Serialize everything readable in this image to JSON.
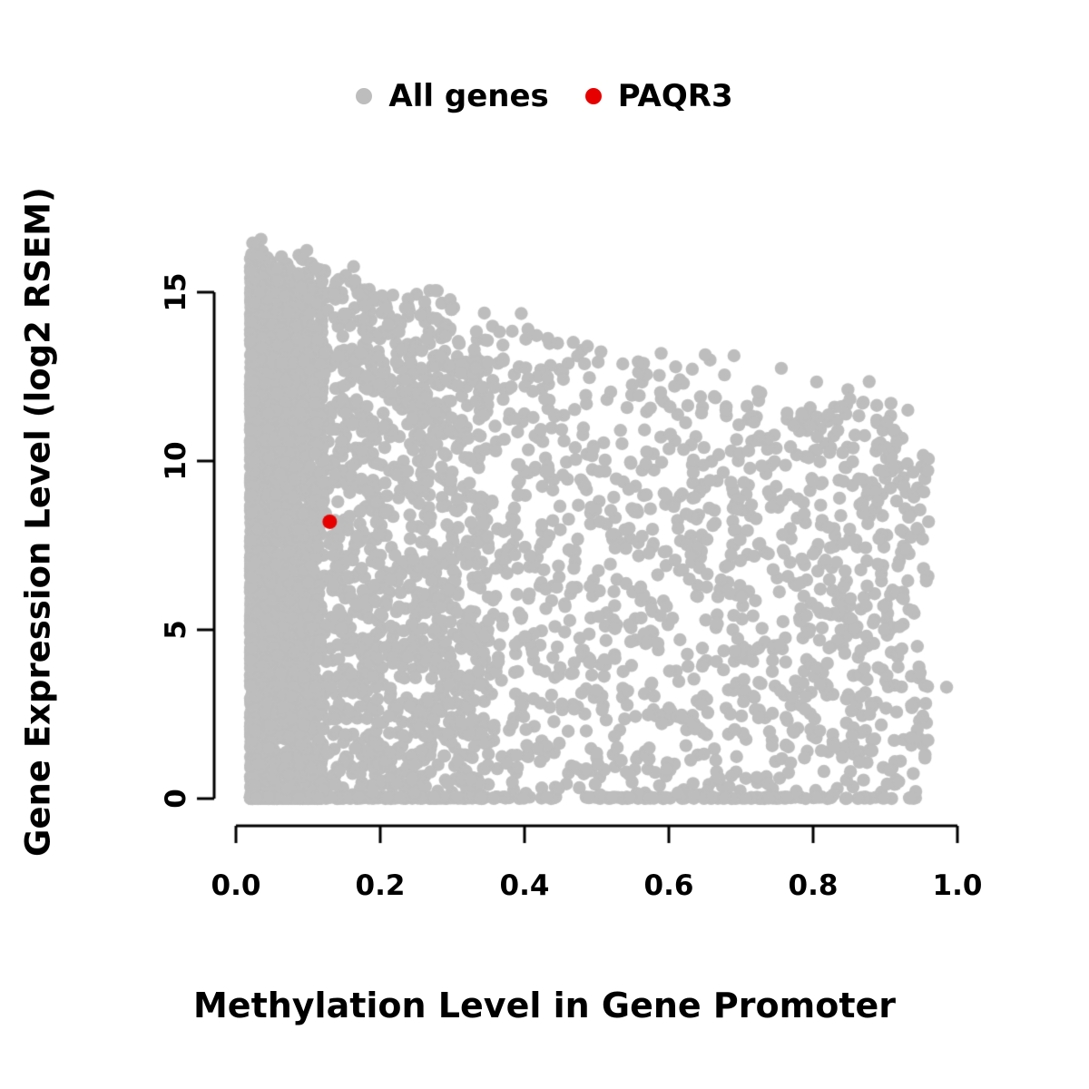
{
  "chart_data": {
    "type": "scatter",
    "title": "",
    "xlabel": "Methylation Level in Gene Promoter",
    "ylabel": "Gene Expression Level (log2 RSEM)",
    "xlim": [
      0,
      1
    ],
    "ylim": [
      0,
      15
    ],
    "x_ticks": [
      0,
      0.2,
      0.4,
      0.6,
      0.8,
      1.0
    ],
    "x_tick_labels": [
      "0.0",
      "0.2",
      "0.4",
      "0.6",
      "0.8",
      "1.0"
    ],
    "y_ticks": [
      0,
      5,
      10,
      15
    ],
    "y_tick_labels": [
      "0",
      "5",
      "10",
      "15"
    ],
    "grid": false,
    "legend_position": "top-center",
    "legend": [
      {
        "label": "All genes",
        "color": "#bdbdbd"
      },
      {
        "label": "PAQR3",
        "color": "#e60000"
      }
    ],
    "series": [
      {
        "name": "All genes",
        "color": "#bdbdbd",
        "marker_radius_px": 7.2,
        "generator": {
          "n": 5500,
          "seed": 20,
          "x_min": 0.02,
          "x_max": 0.96,
          "left_cluster_fraction": 0.4,
          "left_cluster_width": 0.1,
          "mid_fraction": 0.25,
          "mid_width": 0.33,
          "envelope_intercept": 16.8,
          "envelope_slope": -5,
          "envelope_jitter": 1.5,
          "baseline_fraction": 0.1,
          "baseline_height": 0.05
        },
        "extra_points": [
          [
            0.985,
            3.3
          ],
          [
            0.955,
            1.2
          ]
        ]
      },
      {
        "name": "PAQR3",
        "color": "#e60000",
        "marker_radius_px": 8,
        "points": [
          [
            0.13,
            8.2
          ]
        ]
      }
    ]
  }
}
